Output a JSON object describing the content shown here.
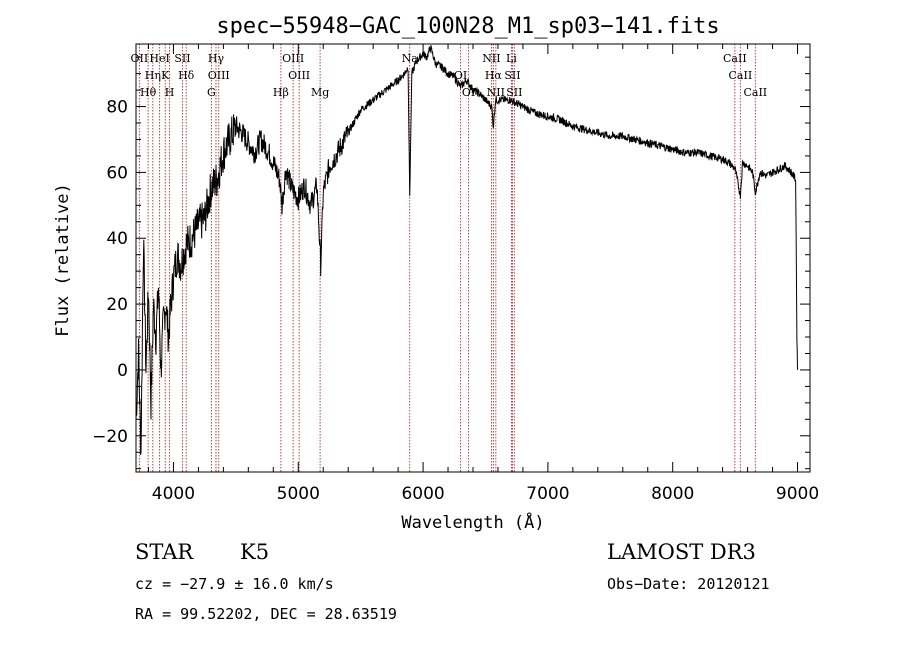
{
  "chart_data": {
    "type": "line",
    "title": "spec−55948−GAC_100N28_M1_sp03−141.fits",
    "xlabel": "Wavelength (Å)",
    "ylabel": "Flux (relative)",
    "xlim": [
      3700,
      9100
    ],
    "ylim": [
      -31,
      99
    ],
    "xticks": [
      4000,
      5000,
      6000,
      7000,
      8000,
      9000
    ],
    "yticks": [
      -20,
      0,
      20,
      40,
      60,
      80
    ],
    "ytick_labels": [
      "−20",
      "0",
      "20",
      "40",
      "60",
      "80"
    ],
    "series": [
      {
        "name": "flux",
        "x": [
          3700,
          3720,
          3740,
          3760,
          3780,
          3800,
          3820,
          3840,
          3860,
          3880,
          3900,
          3920,
          3940,
          3960,
          3980,
          4000,
          4030,
          4060,
          4100,
          4150,
          4200,
          4250,
          4300,
          4350,
          4400,
          4450,
          4500,
          4550,
          4600,
          4650,
          4700,
          4750,
          4800,
          4850,
          4870,
          4900,
          4950,
          5000,
          5050,
          5100,
          5150,
          5180,
          5200,
          5250,
          5300,
          5400,
          5500,
          5600,
          5700,
          5800,
          5850,
          5880,
          5893,
          5910,
          5950,
          6000,
          6030,
          6060,
          6100,
          6150,
          6200,
          6250,
          6300,
          6350,
          6400,
          6450,
          6500,
          6550,
          6563,
          6580,
          6650,
          6700,
          6800,
          6900,
          7000,
          7100,
          7200,
          7300,
          7400,
          7500,
          7600,
          7700,
          7800,
          7900,
          8000,
          8100,
          8200,
          8300,
          8400,
          8450,
          8500,
          8542,
          8560,
          8600,
          8640,
          8662,
          8700,
          8750,
          8800,
          8850,
          8900,
          8950,
          8985,
          8995,
          9000
        ],
        "y": [
          -15,
          5,
          -25,
          40,
          0,
          25,
          -10,
          20,
          10,
          25,
          0,
          15,
          20,
          10,
          20,
          28,
          35,
          32,
          38,
          40,
          44,
          46,
          55,
          58,
          66,
          70,
          74,
          72,
          69,
          66,
          70,
          67,
          63,
          58,
          50,
          61,
          55,
          52,
          56,
          50,
          56,
          32,
          54,
          62,
          65,
          72,
          79,
          82,
          85,
          88,
          90,
          92,
          53,
          90,
          94,
          96,
          95,
          98,
          93,
          92,
          90,
          89,
          86,
          88,
          85,
          84,
          82,
          80,
          74,
          82,
          82,
          82,
          80,
          78,
          77,
          76,
          74,
          73,
          72,
          71,
          71,
          70,
          69,
          68,
          67,
          66,
          66,
          65,
          64,
          63,
          61,
          53,
          63,
          62,
          60,
          54,
          60,
          59,
          60,
          61,
          62,
          60,
          58,
          10,
          0
        ]
      }
    ],
    "reference_lines": [
      {
        "name": "O II",
        "x": 3727,
        "label": "OII"
      },
      {
        "name": "H eta",
        "x": 3835,
        "label": "Hη"
      },
      {
        "name": "H theta",
        "x": 3797,
        "label": "Hθ"
      },
      {
        "name": "He I",
        "x": 3889,
        "label": "HeI"
      },
      {
        "name": "Ca K",
        "x": 3934,
        "label": "K"
      },
      {
        "name": "Ca H",
        "x": 3969,
        "label": "H"
      },
      {
        "name": "S II 4072",
        "x": 4072,
        "label": "SII"
      },
      {
        "name": "H delta",
        "x": 4102,
        "label": "Hδ"
      },
      {
        "name": "G band",
        "x": 4304,
        "label": "G"
      },
      {
        "name": "H gamma",
        "x": 4341,
        "label": "Hγ"
      },
      {
        "name": "O III 4363",
        "x": 4363,
        "label": "OIII"
      },
      {
        "name": "H beta",
        "x": 4861,
        "label": "Hβ"
      },
      {
        "name": "O III 4959",
        "x": 4959,
        "label": "OIII"
      },
      {
        "name": "O III 5007",
        "x": 5007,
        "label": "OIII"
      },
      {
        "name": "Mg",
        "x": 5175,
        "label": "Mg"
      },
      {
        "name": "Na",
        "x": 5893,
        "label": "Na"
      },
      {
        "name": "O I 6300",
        "x": 6300,
        "label": "OI"
      },
      {
        "name": "O I 6364",
        "x": 6364,
        "label": "OI"
      },
      {
        "name": "N II 6548",
        "x": 6548,
        "label": "NII"
      },
      {
        "name": "H alpha",
        "x": 6563,
        "label": "Hα"
      },
      {
        "name": "N II 6583",
        "x": 6583,
        "label": "NII"
      },
      {
        "name": "Li",
        "x": 6708,
        "label": "Li"
      },
      {
        "name": "S II 6716",
        "x": 6716,
        "label": "SII"
      },
      {
        "name": "S II 6731",
        "x": 6731,
        "label": "SII"
      },
      {
        "name": "Ca II 8498",
        "x": 8498,
        "label": "CaII"
      },
      {
        "name": "Ca II 8542",
        "x": 8542,
        "label": "CaII"
      },
      {
        "name": "Ca II 8662",
        "x": 8662,
        "label": "CaII"
      }
    ],
    "colors": {
      "spectrum": "#000000",
      "reference_line": "#b03030",
      "axes": "#000000"
    }
  },
  "info": {
    "object_class": "STAR",
    "subclass": "K5",
    "survey": "LAMOST DR3",
    "redshift_line": "cz = −27.9 ± 16.0 km/s",
    "obs_date_line": "Obs−Date: 20120121",
    "coords_line": "RA =  99.52202, DEC =  28.63519"
  }
}
